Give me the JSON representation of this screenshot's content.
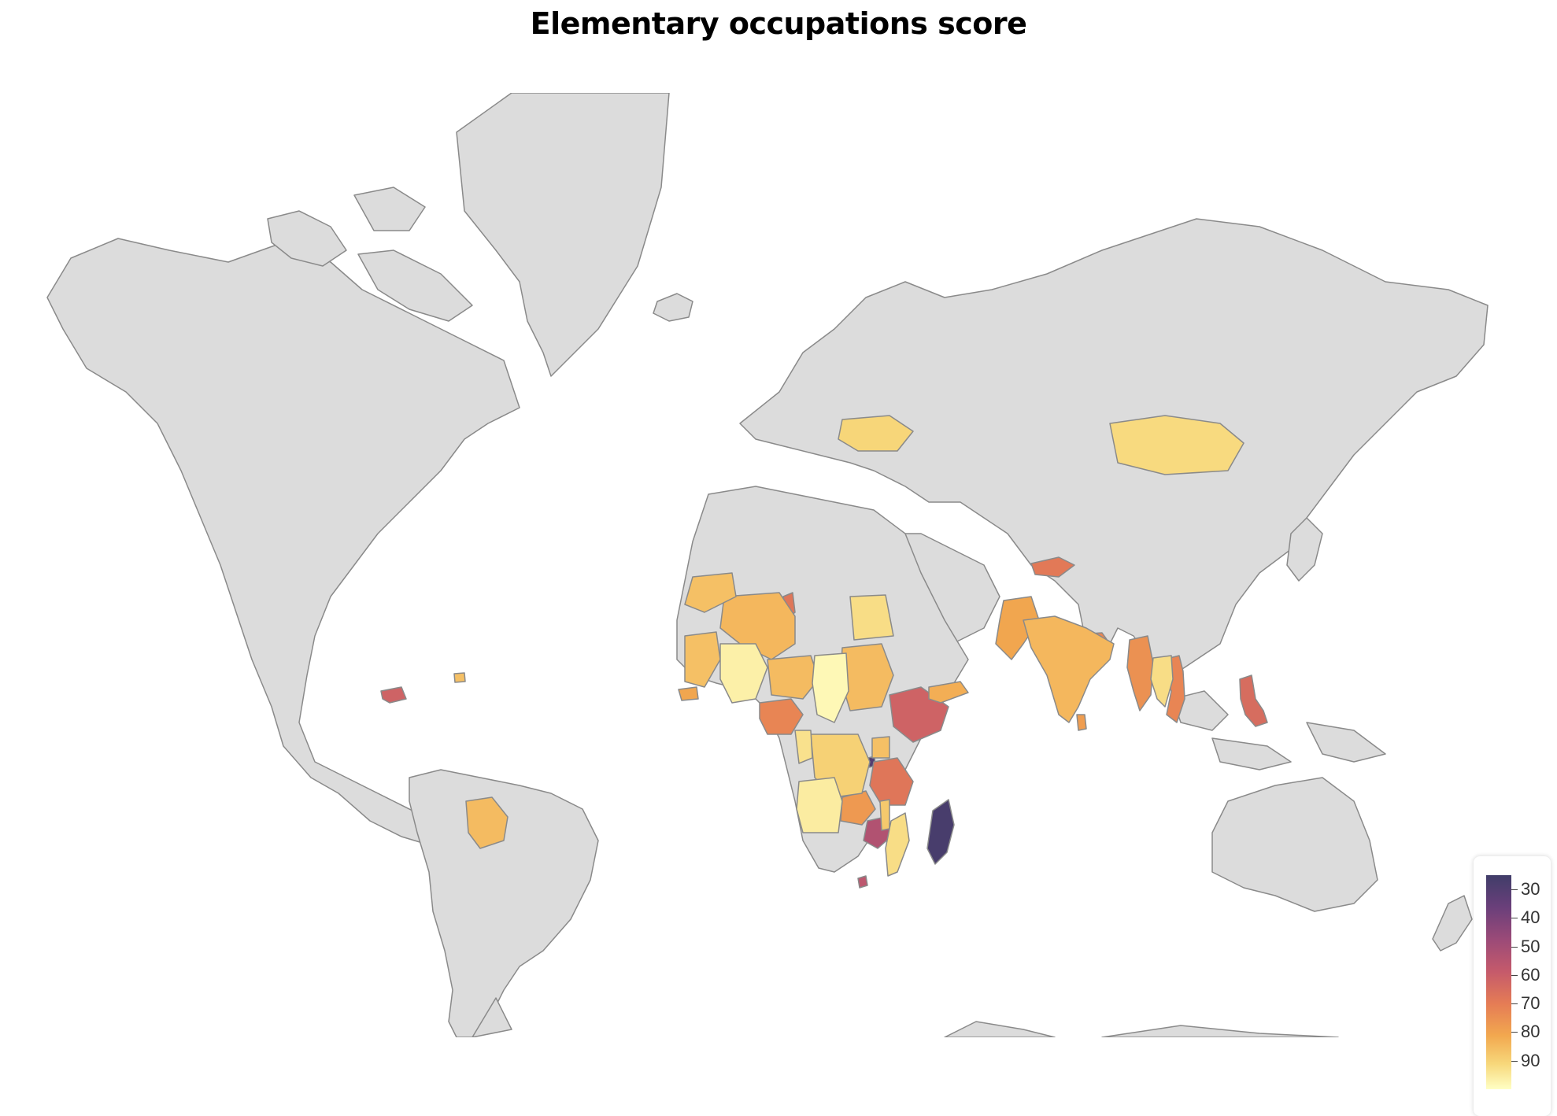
{
  "chart_data": {
    "type": "choropleth",
    "title": "Elementary occupations score",
    "colorscale": [
      "#403d69",
      "#6a3f7a",
      "#9b4a78",
      "#c55a6b",
      "#e57c55",
      "#f2a84f",
      "#f7d77a",
      "#ffffc4"
    ],
    "no_data_color": "#dcdcdc",
    "colorbar": {
      "ticks": [
        30,
        40,
        50,
        60,
        70,
        80,
        90
      ],
      "tick_labels": [
        "30",
        "40",
        "50",
        "60",
        "70",
        "80",
        "90"
      ],
      "range": [
        25,
        100
      ],
      "placement": "bottom-right"
    },
    "countries": [
      {
        "name": "Madagascar",
        "value": 27
      },
      {
        "name": "Burundi",
        "value": 30
      },
      {
        "name": "Zimbabwe",
        "value": 52
      },
      {
        "name": "Eswatini",
        "value": 55
      },
      {
        "name": "Ethiopia",
        "value": 60
      },
      {
        "name": "Philippines",
        "value": 63
      },
      {
        "name": "Honduras",
        "value": 60
      },
      {
        "name": "Tunisia",
        "value": 66
      },
      {
        "name": "Kyrgyzstan",
        "value": 67
      },
      {
        "name": "Tanzania",
        "value": 66
      },
      {
        "name": "Nigeria",
        "value": 70
      },
      {
        "name": "Nepal",
        "value": 70
      },
      {
        "name": "Vietnam",
        "value": 70
      },
      {
        "name": "Myanmar",
        "value": 73
      },
      {
        "name": "Zambia",
        "value": 75
      },
      {
        "name": "Pakistan",
        "value": 78
      },
      {
        "name": "Sri Lanka",
        "value": 76
      },
      {
        "name": "Yemen",
        "value": 80
      },
      {
        "name": "Senegal",
        "value": 78
      },
      {
        "name": "India",
        "value": 82
      },
      {
        "name": "Algeria",
        "value": 82
      },
      {
        "name": "Bolivia",
        "value": 83
      },
      {
        "name": "Sudan",
        "value": 83
      },
      {
        "name": "Niger",
        "value": 83
      },
      {
        "name": "Mauritania",
        "value": 84
      },
      {
        "name": "Morocco",
        "value": 84
      },
      {
        "name": "Uganda",
        "value": 84
      },
      {
        "name": "Malawi",
        "value": 86
      },
      {
        "name": "Haiti",
        "value": 84
      },
      {
        "name": "DR Congo",
        "value": 88
      },
      {
        "name": "Ukraine",
        "value": 89
      },
      {
        "name": "Mongolia",
        "value": 90
      },
      {
        "name": "Egypt",
        "value": 91
      },
      {
        "name": "Mozambique",
        "value": 91
      },
      {
        "name": "Thailand",
        "value": 91
      },
      {
        "name": "Cameroon",
        "value": 92
      },
      {
        "name": "Angola",
        "value": 95
      },
      {
        "name": "Mali",
        "value": 96
      },
      {
        "name": "Chad",
        "value": 98
      }
    ]
  }
}
